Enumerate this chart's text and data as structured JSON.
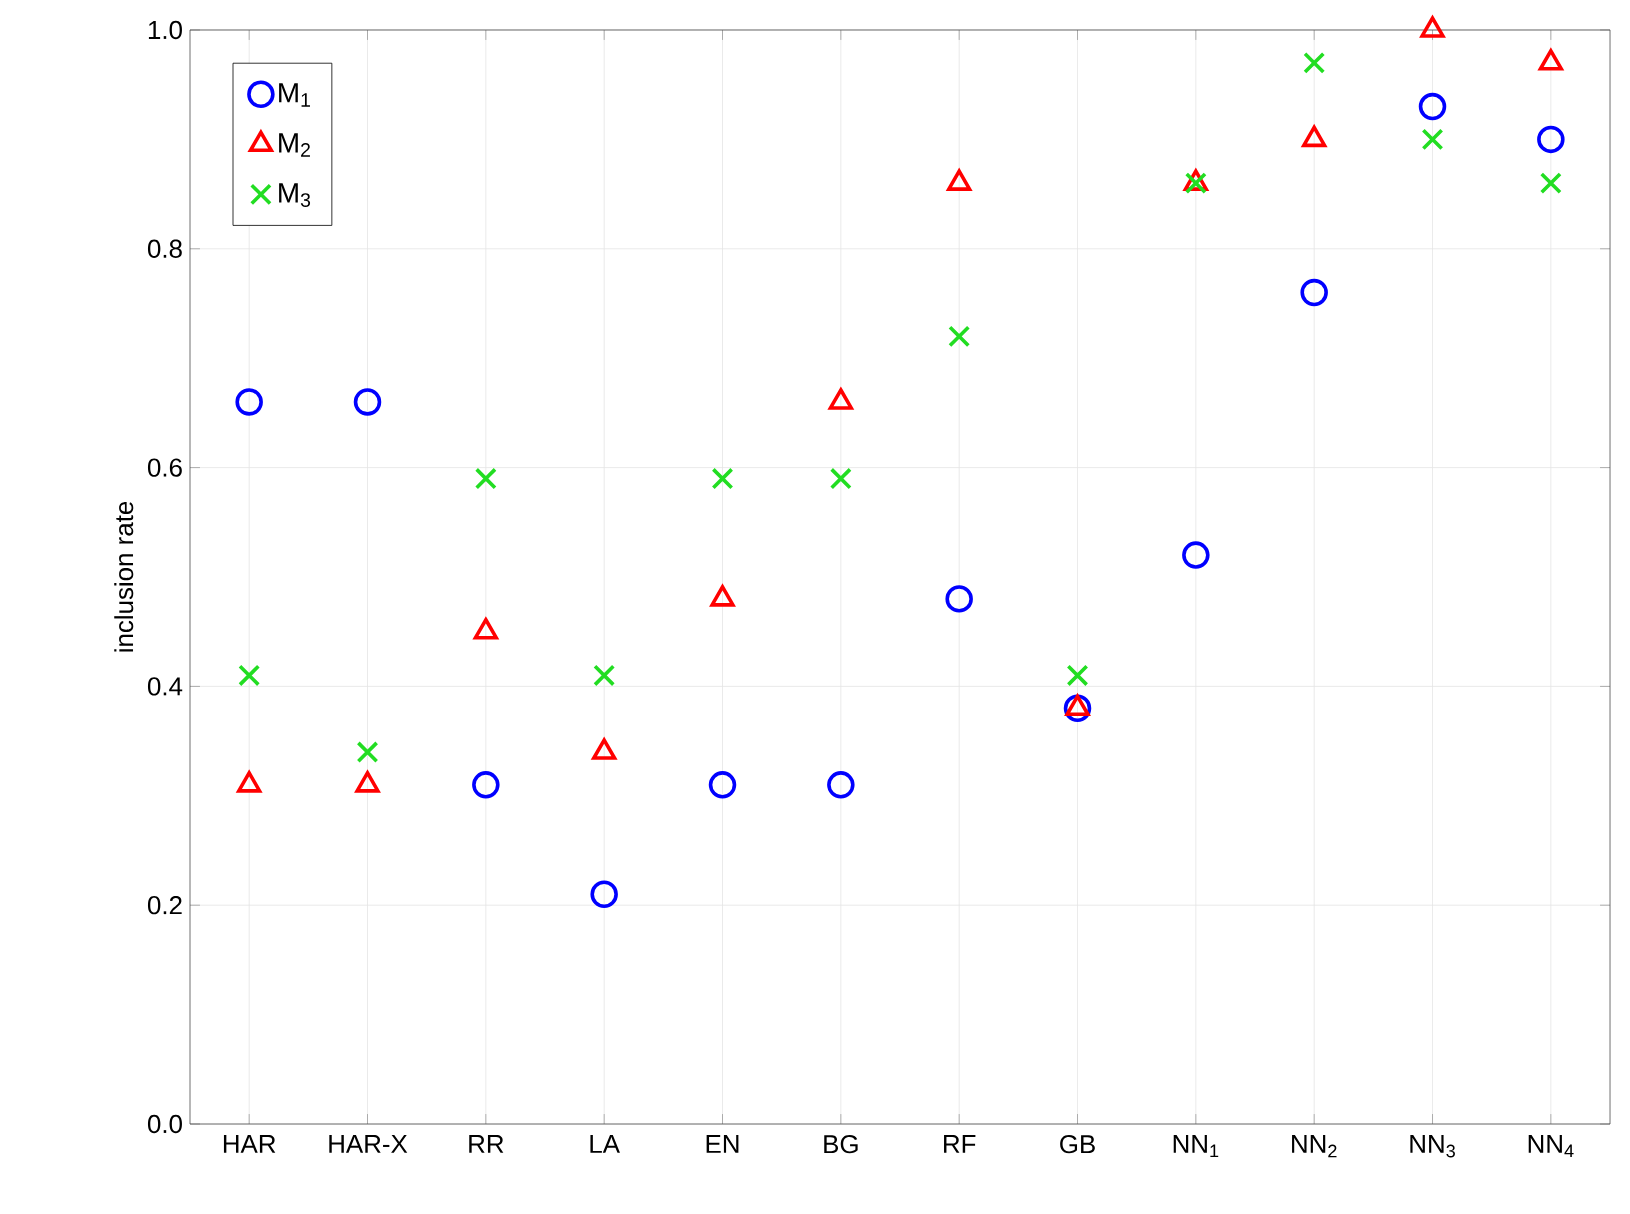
{
  "chart_data": {
    "type": "scatter",
    "ylabel": "inclusion rate",
    "categories": [
      "HAR",
      "HAR-X",
      "RR",
      "LA",
      "EN",
      "BG",
      "RF",
      "GB",
      "NN$_{1}$",
      "NN$_{2}$",
      "NN$_{3}$",
      "NN$_{4}$"
    ],
    "series": [
      {
        "name": "M$_{1}$",
        "color": "#0000ff",
        "marker": "circle",
        "values": [
          0.66,
          0.66,
          0.31,
          0.21,
          0.31,
          0.31,
          0.48,
          0.38,
          0.52,
          0.76,
          0.93,
          0.9
        ]
      },
      {
        "name": "M$_{2}$",
        "color": "#ff0000",
        "marker": "triangle",
        "values": [
          0.31,
          0.31,
          0.45,
          0.34,
          0.48,
          0.66,
          0.86,
          0.38,
          0.86,
          0.9,
          1.0,
          0.97
        ]
      },
      {
        "name": "M$_{3}$",
        "color": "#22dd22",
        "marker": "cross",
        "values": [
          0.41,
          0.34,
          0.59,
          0.41,
          0.59,
          0.59,
          0.72,
          0.41,
          0.86,
          0.97,
          0.9,
          0.86
        ]
      }
    ],
    "ylim": [
      0,
      1
    ],
    "yticks": [
      {
        "value": 0,
        "label": "0.0"
      },
      {
        "value": 0.2,
        "label": "0.2"
      },
      {
        "value": 0.4,
        "label": "0.4"
      },
      {
        "value": 0.6,
        "label": "0.6"
      },
      {
        "value": 0.8,
        "label": "0.8"
      },
      {
        "value": 1,
        "label": "1.0"
      }
    ],
    "grid": true,
    "legend": "top left"
  }
}
